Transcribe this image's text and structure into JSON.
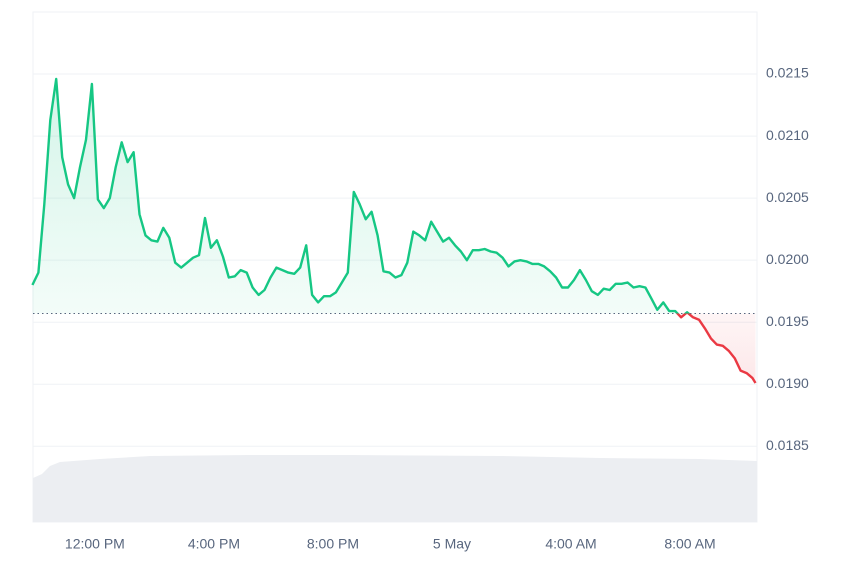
{
  "chart_data": {
    "type": "line",
    "x": [
      9.9,
      10.1,
      10.3,
      10.5,
      10.7,
      10.9,
      11.1,
      11.3,
      11.5,
      11.7,
      11.9,
      12.1,
      12.3,
      12.5,
      12.7,
      12.9,
      13.1,
      13.3,
      13.5,
      13.7,
      13.9,
      14.1,
      14.3,
      14.5,
      14.7,
      14.9,
      15.1,
      15.3,
      15.5,
      15.7,
      15.9,
      16.1,
      16.3,
      16.5,
      16.7,
      16.9,
      17.1,
      17.3,
      17.5,
      17.7,
      17.9,
      18.1,
      18.3,
      18.5,
      18.7,
      18.9,
      19.1,
      19.3,
      19.5,
      19.7,
      19.9,
      20.1,
      20.3,
      20.5,
      20.7,
      20.9,
      21.1,
      21.3,
      21.5,
      21.7,
      21.9,
      22.1,
      22.3,
      22.5,
      22.7,
      22.9,
      23.1,
      23.3,
      23.5,
      23.7,
      23.9,
      24.1,
      24.3,
      24.5,
      24.7,
      24.9,
      25.1,
      25.3,
      25.5,
      25.7,
      25.9,
      26.1,
      26.3,
      26.5,
      26.7,
      26.9,
      27.1,
      27.3,
      27.5,
      27.7,
      27.9,
      28.1,
      28.3,
      28.5,
      28.7,
      28.9,
      29.1,
      29.3,
      29.5,
      29.7,
      29.9,
      30.1,
      30.3,
      30.5,
      30.7,
      30.9,
      31.1,
      31.3,
      31.5,
      31.7,
      31.9,
      32.1,
      32.3,
      32.5,
      32.7,
      32.9,
      33.1,
      33.3,
      33.5,
      33.7,
      33.9,
      34.1,
      34.2
    ],
    "series": [
      {
        "color": "#16c784",
        "down_color": "#ea3943",
        "values": [
          0.0198,
          0.0199,
          0.02045,
          0.02113,
          0.02146,
          0.02083,
          0.02061,
          0.0205,
          0.02075,
          0.02097,
          0.02142,
          0.02049,
          0.02042,
          0.0205,
          0.02075,
          0.02095,
          0.02079,
          0.02087,
          0.02037,
          0.0202,
          0.02016,
          0.02015,
          0.02026,
          0.02018,
          0.01998,
          0.01994,
          0.01998,
          0.02002,
          0.02004,
          0.02034,
          0.0201,
          0.02016,
          0.02003,
          0.01986,
          0.01987,
          0.01992,
          0.0199,
          0.01978,
          0.01972,
          0.01976,
          0.01986,
          0.01994,
          0.01992,
          0.0199,
          0.01989,
          0.01994,
          0.02012,
          0.01972,
          0.01966,
          0.01971,
          0.01971,
          0.01974,
          0.01982,
          0.0199,
          0.02055,
          0.02045,
          0.02033,
          0.02039,
          0.0202,
          0.01991,
          0.0199,
          0.01986,
          0.01988,
          0.01998,
          0.02023,
          0.0202,
          0.02016,
          0.02031,
          0.02023,
          0.02015,
          0.02018,
          0.02012,
          0.02007,
          0.02,
          0.02008,
          0.02008,
          0.02009,
          0.02007,
          0.02006,
          0.02002,
          0.01995,
          0.01999,
          0.02,
          0.01999,
          0.01997,
          0.01997,
          0.01995,
          0.01991,
          0.01986,
          0.01978,
          0.01978,
          0.01984,
          0.01992,
          0.01984,
          0.01975,
          0.01972,
          0.01977,
          0.01976,
          0.01981,
          0.01981,
          0.01982,
          0.01978,
          0.01979,
          0.01978,
          0.01969,
          0.0196,
          0.01966,
          0.01959,
          0.01959,
          0.01954,
          0.01958,
          0.01954,
          0.01952,
          0.01945,
          0.01937,
          0.01932,
          0.01931,
          0.01927,
          0.01921,
          0.01911,
          0.01909,
          0.01905,
          0.01901
        ]
      }
    ],
    "baseline": 0.01957,
    "xlim": [
      9.92,
      34.25
    ],
    "xticks": [
      {
        "value": 12,
        "label": "12:00 PM"
      },
      {
        "value": 16,
        "label": "4:00 PM"
      },
      {
        "value": 20,
        "label": "8:00 PM"
      },
      {
        "value": 24,
        "label": "5 May"
      },
      {
        "value": 28,
        "label": "4:00 AM"
      },
      {
        "value": 32,
        "label": "8:00 AM"
      }
    ],
    "ylim": [
      0.01789,
      0.022
    ],
    "yticks": [
      0.0185,
      {
        "value": 0.019,
        "label": "0.0190"
      },
      0.0195,
      {
        "value": 0.02,
        "label": "0.0200"
      },
      0.0205,
      {
        "value": 0.021,
        "label": "0.0210"
      },
      0.0215
    ],
    "grid": true
  }
}
